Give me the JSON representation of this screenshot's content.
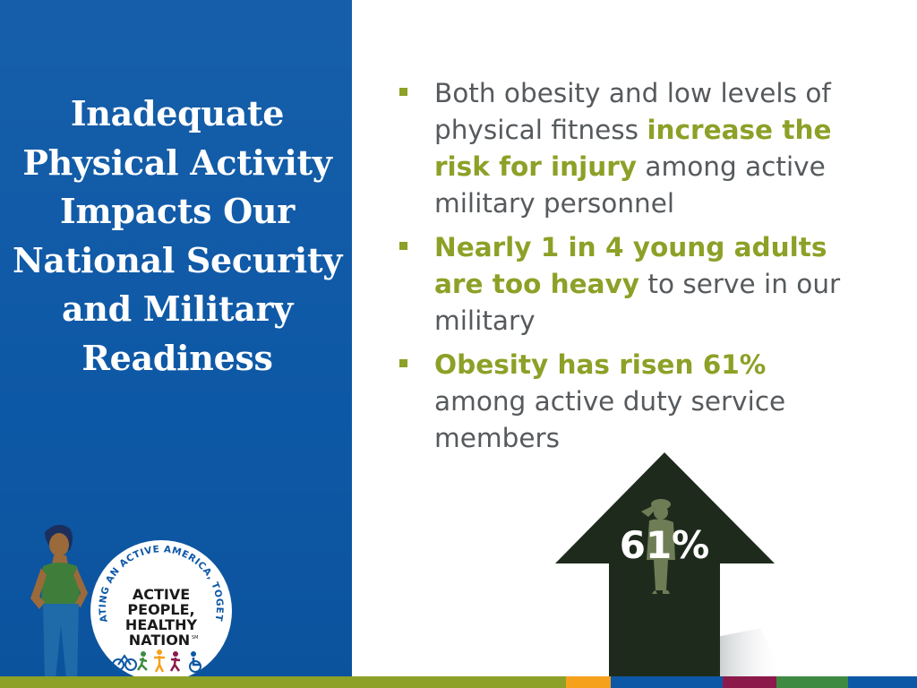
{
  "slide": {
    "title": "Inadequate Physical Activity Impacts Our National Security and Military Readiness",
    "bullets": [
      {
        "parts": [
          {
            "text": "Both obesity and low levels of physical fitness ",
            "bold": false
          },
          {
            "text": "increase the risk for injury",
            "bold": true
          },
          {
            "text": " among active military personnel",
            "bold": false
          }
        ]
      },
      {
        "parts": [
          {
            "text": "Nearly 1 in 4 young adults are too heavy",
            "bold": true
          },
          {
            "text": " to serve in our military",
            "bold": false
          }
        ]
      },
      {
        "parts": [
          {
            "text": "Obesity has risen 61%",
            "bold": true
          },
          {
            "text": " among active duty service members",
            "bold": false
          }
        ]
      }
    ],
    "arrow_label": "61%"
  },
  "logo": {
    "arc_text": "CREATING AN ACTIVE AMERICA, TOGETHER",
    "line1": "ACTIVE",
    "line2": "PEOPLE,",
    "line3": "HEALTHY",
    "line4": "NATION",
    "tm": "SM"
  },
  "colors": {
    "panel_blue": "#0d58a6",
    "accent_green": "#8da027",
    "body_gray": "#565a5d",
    "arrow_dark": "#1e2b1c",
    "bar": [
      "#8da027",
      "#f5a11c",
      "#0d58a6",
      "#8b1a4b",
      "#3f8a43",
      "#0d58a6"
    ]
  },
  "icons": [
    "bullet-square-icon",
    "soldier-salute-icon",
    "up-arrow-icon",
    "woman-figure-icon",
    "activity-people-icon"
  ]
}
